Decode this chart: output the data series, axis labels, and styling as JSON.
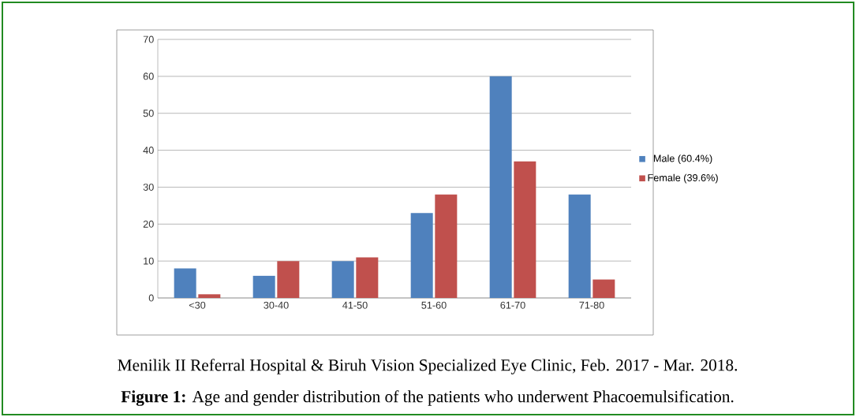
{
  "chart_data": {
    "type": "bar",
    "categories": [
      "<30",
      "30-40",
      "41-50",
      "51-60",
      "61-70",
      "71-80"
    ],
    "series": [
      {
        "name": "Male (60.4%)",
        "color": "#4f81bd",
        "values": [
          8,
          6,
          10,
          23,
          60,
          28
        ]
      },
      {
        "name": "Female (39.6%)",
        "color": "#c0504d",
        "values": [
          1,
          10,
          11,
          28,
          37,
          5
        ]
      }
    ],
    "ylim": [
      0,
      70
    ],
    "yticks": [
      0,
      10,
      20,
      30,
      40,
      50,
      60,
      70
    ],
    "grid": "y",
    "legend": "right",
    "annotations": [
      "Menilik II Referral Hospital & Biruh Vision Specialized Eye Clinic, Feb. 2017 - Mar. 2018.",
      "**Figure 1:** Age and gender distribution of the patients who underwent Phacoemulsification."
    ]
  }
}
